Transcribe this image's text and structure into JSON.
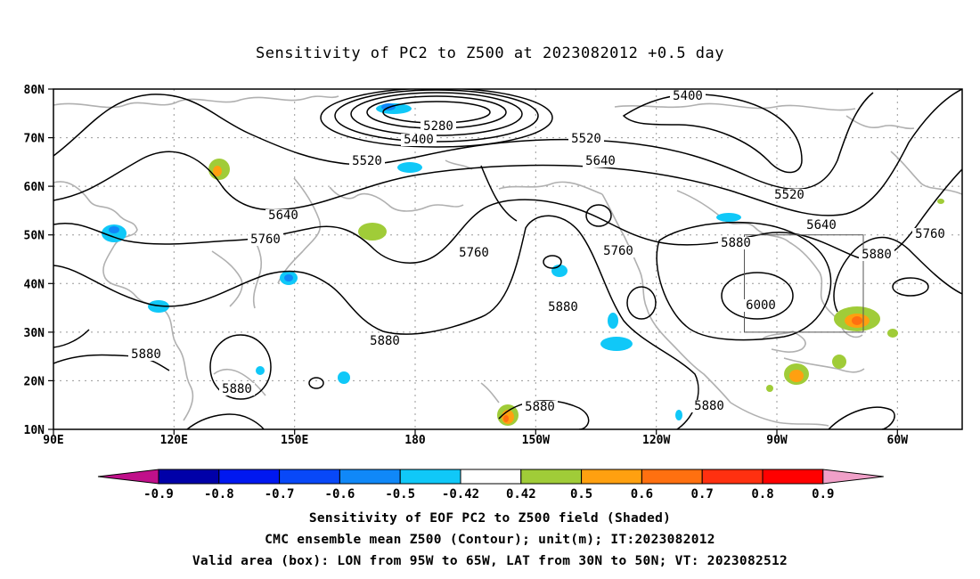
{
  "title": "Sensitivity of PC2 to Z500 at 2023082012 +0.5 day",
  "lat_labels": [
    "80N",
    "70N",
    "60N",
    "50N",
    "40N",
    "30N",
    "20N",
    "10N"
  ],
  "lon_labels": [
    "90E",
    "120E",
    "150E",
    "180",
    "150W",
    "120W",
    "90W",
    "60W"
  ],
  "contour_labels": [
    "5400",
    "5280",
    "5400",
    "5520",
    "5520",
    "5640",
    "5640",
    "5760",
    "5760",
    "5760",
    "5880",
    "5880",
    "5880",
    "5880",
    "5880",
    "5880",
    "6000",
    "5520",
    "5640",
    "5760",
    "5880",
    "5880"
  ],
  "valid_area_box": {
    "lon_from": "95W",
    "lon_to": "65W",
    "lat_from": "30N",
    "lat_to": "50N"
  },
  "colorbar": {
    "labels": [
      "-0.9",
      "-0.8",
      "-0.7",
      "-0.6",
      "-0.5",
      "-0.42",
      "0.42",
      "0.5",
      "0.6",
      "0.7",
      "0.8",
      "0.9"
    ],
    "colors": [
      "#c0108a",
      "#0000a8",
      "#0018f0",
      "#0848f8",
      "#1088f8",
      "#10c8f8",
      "#ffffff",
      "#a0cc38",
      "#ffa010",
      "#ff7010",
      "#ff3010",
      "#ff0000",
      "#f0a0c8"
    ]
  },
  "captions": {
    "line1": "Sensitivity of EOF PC2 to Z500 field (Shaded)",
    "line2": "CMC ensemble mean Z500 (Contour); unit(m); IT:2023082012",
    "line3": "Valid area (box): LON from 95W to 65W, LAT from 30N to 50N; VT: 2023082512"
  }
}
